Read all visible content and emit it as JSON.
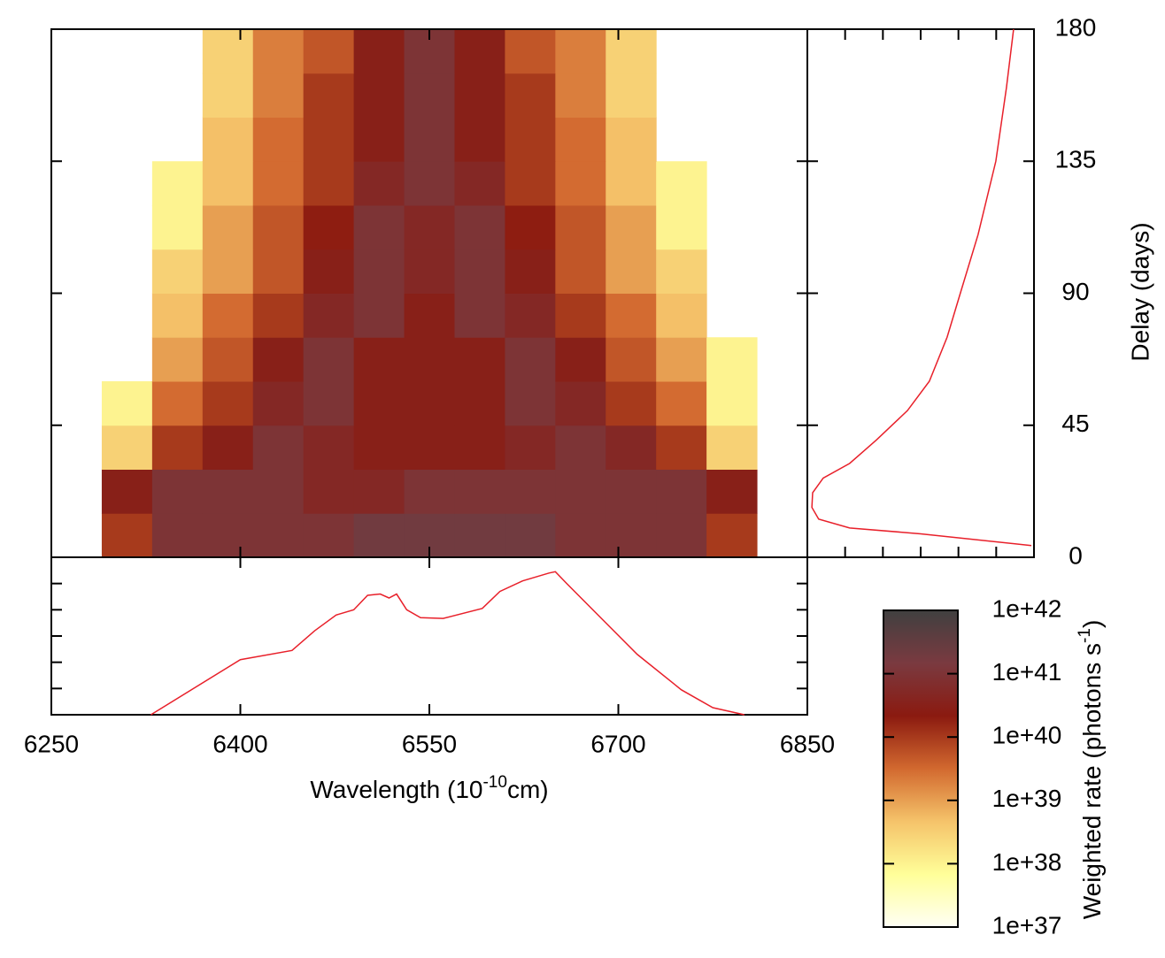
{
  "chart_data": [
    {
      "type": "heatmap",
      "x_bins": [
        6250,
        6290,
        6330,
        6370,
        6410,
        6450,
        6490,
        6530,
        6570,
        6610,
        6650,
        6690,
        6730,
        6770,
        6810,
        6850
      ],
      "y_bins": [
        0,
        15,
        30,
        45,
        60,
        75,
        90,
        105,
        120,
        135,
        150,
        165,
        180
      ],
      "z": [
        [
          null,
          1e+40,
          1e+41,
          1e+41,
          1e+41,
          1e+41,
          2e+41,
          2e+41,
          2e+41,
          2e+41,
          1e+41,
          1e+41,
          1e+41,
          1e+40,
          null
        ],
        [
          null,
          3e+40,
          1e+41,
          1e+41,
          1e+41,
          5e+40,
          5e+40,
          1e+41,
          1e+41,
          1e+41,
          1e+41,
          1e+41,
          1e+41,
          3e+40,
          null
        ],
        [
          null,
          3e+38,
          1e+40,
          3e+40,
          1e+41,
          5e+40,
          3e+40,
          3e+40,
          3e+40,
          5e+40,
          1e+41,
          5e+40,
          1e+40,
          3e+38,
          null
        ],
        [
          null,
          1e+38,
          3e+39,
          1e+40,
          5e+40,
          1e+41,
          3e+40,
          3e+40,
          3e+40,
          1e+41,
          5e+40,
          1e+40,
          3e+39,
          1e+38,
          null
        ],
        [
          null,
          null,
          1e+39,
          5e+39,
          3e+40,
          1e+41,
          3e+40,
          3e+40,
          3e+40,
          1e+41,
          3e+40,
          5e+39,
          1e+39,
          1e+38,
          null
        ],
        [
          null,
          null,
          5e+38,
          3e+39,
          1e+40,
          5e+40,
          1e+41,
          3e+40,
          1e+41,
          5e+40,
          1e+40,
          3e+39,
          5e+38,
          null,
          null
        ],
        [
          null,
          null,
          3e+38,
          1e+39,
          5e+39,
          3e+40,
          1e+41,
          5e+40,
          1e+41,
          3e+40,
          5e+39,
          1e+39,
          3e+38,
          null,
          null
        ],
        [
          null,
          null,
          1e+38,
          1e+39,
          5e+39,
          2e+40,
          1e+41,
          5e+40,
          1e+41,
          2e+40,
          5e+39,
          1e+39,
          1e+38,
          null,
          null
        ],
        [
          null,
          null,
          1e+38,
          5e+38,
          3e+39,
          1e+40,
          5e+40,
          1e+41,
          5e+40,
          1e+40,
          3e+39,
          5e+38,
          1e+38,
          null,
          null
        ],
        [
          null,
          null,
          null,
          5e+38,
          3e+39,
          1e+40,
          3e+40,
          1e+41,
          3e+40,
          1e+40,
          3e+39,
          5e+38,
          null,
          null,
          null
        ],
        [
          null,
          null,
          null,
          3e+38,
          2e+39,
          1e+40,
          3e+40,
          1e+41,
          3e+40,
          1e+40,
          2e+39,
          3e+38,
          null,
          null,
          null
        ],
        [
          null,
          null,
          null,
          3e+38,
          2e+39,
          5e+39,
          3e+40,
          1e+41,
          3e+40,
          5e+39,
          2e+39,
          3e+38,
          null,
          null,
          null
        ]
      ],
      "xlim": [
        6250,
        6850
      ],
      "xticks": [
        6250,
        6400,
        6550,
        6700,
        6850
      ],
      "xlabel": {
        "text": "Wavelength (10",
        "superscript": "-10",
        "suffix": "cm)"
      },
      "ylim": [
        0,
        180
      ],
      "yticks": [
        0,
        45,
        90,
        135,
        180
      ],
      "ylabel": "Delay (days)",
      "zlim": [
        1e+37,
        1e+42
      ],
      "zlog": true,
      "zticks": [
        {
          "value": 1e+37,
          "label": "1e+37"
        },
        {
          "value": 1e+38,
          "label": "1e+38"
        },
        {
          "value": 1e+39,
          "label": "1e+39"
        },
        {
          "value": 1e+40,
          "label": "1e+40"
        },
        {
          "value": 1e+41,
          "label": "1e+41"
        },
        {
          "value": 1e+42,
          "label": "1e+42"
        }
      ],
      "zlabel": {
        "text": "Weighted rate (photons s",
        "superscript": "-1",
        "suffix": ")"
      },
      "colormap": [
        "#fffff5",
        "#ffff99",
        "#f5c36a",
        "#d2692f",
        "#8b1a10",
        "#7a3a40",
        "#404040"
      ]
    },
    {
      "type": "line",
      "orientation": "horizontal",
      "x": [
        6329,
        6400,
        6441,
        6459,
        6476,
        6490,
        6501,
        6511,
        6518,
        6524,
        6532,
        6543,
        6561,
        6592,
        6606,
        6624,
        6645,
        6650,
        6659,
        6687,
        6715,
        6750,
        6775,
        6800
      ],
      "values": [
        0,
        2.1,
        2.45,
        3.2,
        3.8,
        4.0,
        4.55,
        4.6,
        4.45,
        4.6,
        4.0,
        3.7,
        3.67,
        4.05,
        4.7,
        5.1,
        5.4,
        5.45,
        5.0,
        3.65,
        2.3,
        0.95,
        0.27,
        0
      ],
      "ylim": [
        0,
        6
      ],
      "yticks": [
        1,
        2,
        3,
        4,
        5
      ],
      "color": "#e8202a"
    },
    {
      "type": "line",
      "orientation": "vertical",
      "y": [
        4,
        8,
        10,
        13,
        17,
        22,
        27,
        32,
        40,
        50,
        60,
        75,
        90,
        110,
        135,
        160,
        180
      ],
      "values": [
        5.93,
        3.0,
        1.12,
        0.3,
        0.12,
        0.14,
        0.42,
        1.12,
        1.83,
        2.65,
        3.23,
        3.7,
        4.05,
        4.52,
        4.99,
        5.27,
        5.46
      ],
      "xlim": [
        0,
        6
      ],
      "xticks": [
        1,
        2,
        3,
        4,
        5
      ],
      "color": "#e8202a"
    }
  ]
}
